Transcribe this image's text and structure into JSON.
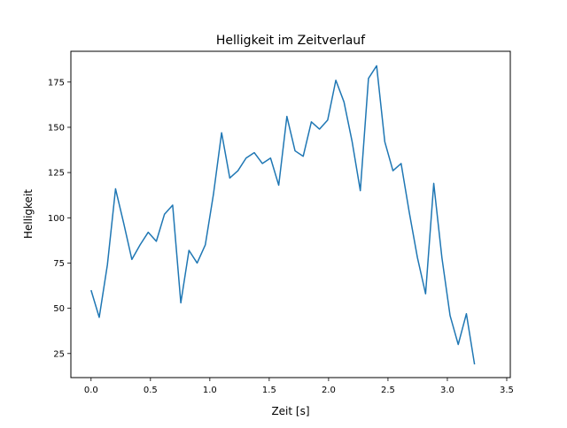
{
  "chart_data": {
    "type": "line",
    "title": "Helligkeit im Zeitverlauf",
    "xlabel": "Zeit [s]",
    "ylabel": "Helligkeit",
    "xlim": [
      -0.17,
      3.53
    ],
    "ylim": [
      11.7,
      192
    ],
    "x_ticks": [
      "0.0",
      "0.5",
      "1.0",
      "1.5",
      "2.0",
      "2.5",
      "3.0",
      "3.5"
    ],
    "y_ticks": [
      "25",
      "50",
      "75",
      "100",
      "125",
      "150",
      "175"
    ],
    "grid": false,
    "line_color": "#1f77b4",
    "x_step": 0.0687,
    "values": [
      60,
      45,
      74,
      116,
      97,
      77,
      85,
      92,
      87,
      102,
      107,
      53,
      82,
      75,
      85,
      113,
      147,
      122,
      126,
      133,
      136,
      130,
      133,
      118,
      156,
      137,
      134,
      153,
      149,
      154,
      176,
      164,
      142,
      115,
      177,
      184,
      142,
      126,
      130,
      103,
      78,
      58,
      119,
      78,
      46,
      30,
      47,
      19
    ]
  }
}
